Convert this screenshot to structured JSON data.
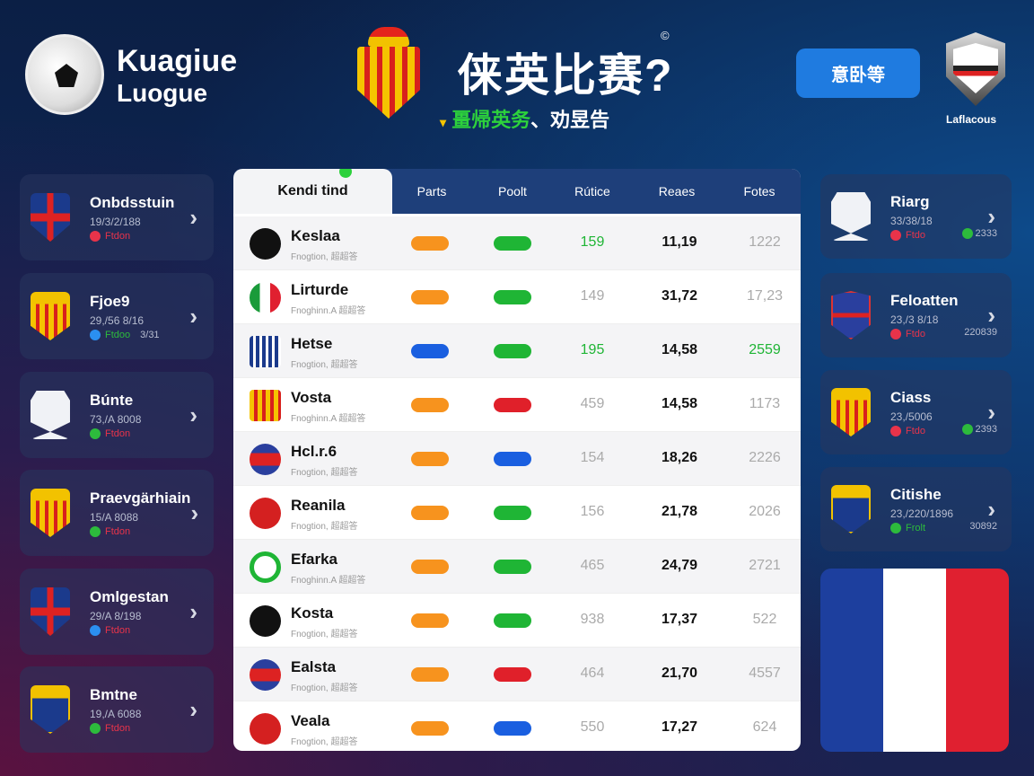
{
  "header": {
    "brand_line1": "Kuagiue",
    "brand_line2": "Luogue",
    "title": "俫英比赛?",
    "copyright": "©",
    "subtitle_green": "畺帰英务",
    "subtitle_white": "、劝昱告",
    "button": "意卧等",
    "badge_label": "Laflacous"
  },
  "left_cards": [
    {
      "name": "Onbdsstuin",
      "date": "19/3/2/188",
      "status": "Ftdon",
      "dot": "#e8334a",
      "label_color": "#e8334a",
      "icon": "union-jack-crest-icon"
    },
    {
      "name": "Fjoe9",
      "date": "29,/56 8/16",
      "status": "Ftdoo",
      "extra": "3/31",
      "dot": "#2b8ff0",
      "label_color": "#2dbb3c",
      "icon": "spanish-crest-icon"
    },
    {
      "name": "Búnte",
      "date": "73,/A 8008",
      "status": "Ftdon",
      "dot": "#2dbb3c",
      "label_color": "#e8334a",
      "icon": "white-shield-icon"
    },
    {
      "name": "Praevgärhiain",
      "date": "15/A 8088",
      "status": "Ftdon",
      "dot": "#2dbb3c",
      "label_color": "#e8334a",
      "icon": "spanish-crest-icon"
    },
    {
      "name": "Omlgestan",
      "date": "29/A 8/198",
      "status": "Ftdon",
      "dot": "#2b8ff0",
      "label_color": "#e8334a",
      "icon": "union-jack-shield-icon"
    },
    {
      "name": "Bmtne",
      "date": "19,/A 6088",
      "status": "Ftdon",
      "dot": "#2dbb3c",
      "label_color": "#e8334a",
      "icon": "blue-crest-icon"
    }
  ],
  "right_cards": [
    {
      "name": "Riarg",
      "date": "33/38/18",
      "status": "Ftdo",
      "extra": "2333",
      "extra_dot": "#2dbb3c",
      "dot": "#e8334a",
      "label_color": "#e8334a",
      "icon": "white-shield-icon"
    },
    {
      "name": "Feloatten",
      "date": "23,/3 8/18",
      "status": "Ftdo",
      "extra": "220839",
      "dot": "#e8334a",
      "label_color": "#e8334a",
      "icon": "red-blue-crest-icon"
    },
    {
      "name": "Ciass",
      "date": "23,/5006",
      "status": "Ftdo",
      "extra": "2393",
      "extra_dot": "#2dbb3c",
      "dot": "#e8334a",
      "label_color": "#e8334a",
      "icon": "spanish-crest-icon"
    },
    {
      "name": "Citishe",
      "date": "23,/220/1896",
      "status": "Frolt",
      "extra": "30892",
      "dot": "#2dbb3c",
      "label_color": "#2dbb3c",
      "icon": "blue-crest-icon"
    }
  ],
  "table": {
    "headers": [
      "Kendi tind",
      "Parts",
      "Poolt",
      "Rútice",
      "Reaes",
      "Fotes"
    ],
    "rows": [
      {
        "name": "Keslaa",
        "sub": "Fnogtion, 超超答",
        "p1": "#f7931e",
        "p2": "#1fb535",
        "v1": "159",
        "v1c": "#1fb535",
        "v2": "11,19",
        "v3": "1222",
        "v3c": "#aaa",
        "av": "#111"
      },
      {
        "name": "Lirturde",
        "sub": "Fnoghinn.A 超超答",
        "p1": "#f7931e",
        "p2": "#1fb535",
        "v1": "149",
        "v1c": "#aaa",
        "v2": "31,72",
        "v3": "17,23",
        "v3c": "#aaa",
        "av": "italy"
      },
      {
        "name": "Hetse",
        "sub": "Fnogtion, 超超答",
        "p1": "#1a5fe0",
        "p2": "#1fb535",
        "v1": "195",
        "v1c": "#1fb535",
        "v2": "14,58",
        "v3": "2559",
        "v3c": "#1fb535",
        "av": "stripes"
      },
      {
        "name": "Vosta",
        "sub": "Fnoghinn.A 超超答",
        "p1": "#f7931e",
        "p2": "#e0202a",
        "v1": "459",
        "v1c": "#aaa",
        "v2": "14,58",
        "v3": "1173",
        "v3c": "#aaa",
        "av": "crest"
      },
      {
        "name": "Hcl.r.6",
        "sub": "Fnogtion, 超超答",
        "p1": "#f7931e",
        "p2": "#1a5fe0",
        "v1": "154",
        "v1c": "#aaa",
        "v2": "18,26",
        "v3": "2226",
        "v3c": "#aaa",
        "av": "rb"
      },
      {
        "name": "Reanila",
        "sub": "Fnogtion, 超超答",
        "p1": "#f7931e",
        "p2": "#1fb535",
        "v1": "156",
        "v1c": "#aaa",
        "v2": "21,78",
        "v3": "2026",
        "v3c": "#aaa",
        "av": "#d42020"
      },
      {
        "name": "Efarka",
        "sub": "Fnoghinn.A 超超答",
        "p1": "#f7931e",
        "p2": "#1fb535",
        "v1": "465",
        "v1c": "#aaa",
        "v2": "24,79",
        "v3": "2721",
        "v3c": "#aaa",
        "av": "green"
      },
      {
        "name": "Kosta",
        "sub": "Fnogtion, 超超答",
        "p1": "#f7931e",
        "p2": "#1fb535",
        "v1": "938",
        "v1c": "#aaa",
        "v2": "17,37",
        "v3": "522",
        "v3c": "#aaa",
        "av": "#111"
      },
      {
        "name": "Ealsta",
        "sub": "Fnogtion, 超超答",
        "p1": "#f7931e",
        "p2": "#e0202a",
        "v1": "464",
        "v1c": "#aaa",
        "v2": "21,70",
        "v3": "4557",
        "v3c": "#aaa",
        "av": "rb"
      },
      {
        "name": "Veala",
        "sub": "Fnogtion, 超超答",
        "p1": "#f7931e",
        "p2": "#1a5fe0",
        "v1": "550",
        "v1c": "#aaa",
        "v2": "17,27",
        "v3": "624",
        "v3c": "#aaa",
        "av": "#d42020"
      }
    ]
  },
  "flag": {
    "colors": [
      "#1d3f9e",
      "#ffffff",
      "#e02030"
    ],
    "icon": "france-flag"
  }
}
